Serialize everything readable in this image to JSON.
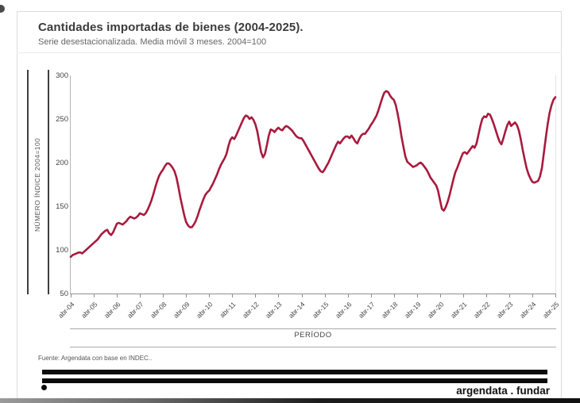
{
  "chart_data": {
    "type": "line",
    "title": "Cantidades importadas de bienes (2004-2025).",
    "subtitle": "Serie desestacionalizada. Media móvil 3 meses. 2004=100",
    "ylabel": "NÚMERO ÍNDICE 2004=100",
    "xlabel": "PERÍODO",
    "ylim": [
      50,
      300
    ],
    "yticks": [
      300,
      250,
      200,
      150,
      100,
      50
    ],
    "grid": false,
    "legend": false,
    "frequency": "monthly",
    "x_start": "abr-04",
    "x_end": "abr-25",
    "xtick_labels": [
      "abr-04",
      "abr-05",
      "abr-06",
      "abr-07",
      "abr-08",
      "abr-09",
      "abr-10",
      "abr-11",
      "abr-12",
      "abr-13",
      "abr-14",
      "abr-15",
      "abr-16",
      "abr-17",
      "abr-18",
      "abr-19",
      "abr-20",
      "abr-21",
      "abr-22",
      "abr-23",
      "abr-24",
      "abr-25"
    ],
    "xticks_every_n_points": 12,
    "series": [
      {
        "name": "Cantidades importadas de bienes (índice 2004=100)",
        "color": "#A81A3D",
        "values": [
          92,
          94,
          95,
          96,
          97,
          97,
          96,
          98,
          100,
          102,
          104,
          106,
          108,
          110,
          112,
          115,
          118,
          120,
          122,
          123,
          119,
          117,
          120,
          125,
          130,
          131,
          130,
          129,
          131,
          133,
          136,
          138,
          137,
          136,
          137,
          139,
          142,
          141,
          140,
          142,
          146,
          151,
          157,
          164,
          172,
          179,
          185,
          189,
          192,
          196,
          199,
          199,
          197,
          194,
          190,
          183,
          172,
          160,
          150,
          140,
          132,
          128,
          126,
          126,
          129,
          133,
          139,
          146,
          152,
          158,
          163,
          166,
          168,
          172,
          176,
          181,
          186,
          192,
          197,
          201,
          205,
          210,
          219,
          226,
          229,
          227,
          231,
          236,
          241,
          246,
          251,
          254,
          253,
          250,
          252,
          249,
          244,
          236,
          224,
          212,
          206,
          210,
          220,
          231,
          238,
          237,
          235,
          238,
          240,
          238,
          237,
          240,
          242,
          241,
          239,
          237,
          234,
          231,
          229,
          228,
          228,
          225,
          221,
          217,
          213,
          209,
          205,
          201,
          197,
          193,
          190,
          189,
          192,
          196,
          200,
          205,
          210,
          215,
          220,
          224,
          222,
          225,
          228,
          230,
          230,
          228,
          231,
          228,
          224,
          222,
          227,
          231,
          233,
          233,
          236,
          239,
          243,
          246,
          250,
          254,
          260,
          267,
          274,
          280,
          282,
          281,
          277,
          274,
          272,
          266,
          256,
          244,
          230,
          218,
          207,
          201,
          199,
          197,
          195,
          196,
          197,
          199,
          200,
          198,
          195,
          192,
          188,
          183,
          180,
          177,
          174,
          168,
          157,
          147,
          145,
          149,
          155,
          163,
          172,
          181,
          189,
          194,
          200,
          206,
          211,
          212,
          210,
          213,
          216,
          219,
          217,
          222,
          232,
          242,
          250,
          253,
          252,
          256,
          255,
          250,
          244,
          237,
          230,
          224,
          221,
          228,
          236,
          243,
          247,
          242,
          244,
          246,
          243,
          237,
          227,
          215,
          204,
          194,
          187,
          182,
          178,
          177,
          178,
          179,
          184,
          194,
          211,
          228,
          244,
          257,
          266,
          272,
          275
        ]
      }
    ]
  },
  "footer": {
    "source": "Fuente: Argendata con base en INDEC..",
    "brand": "argendata . fundar"
  }
}
